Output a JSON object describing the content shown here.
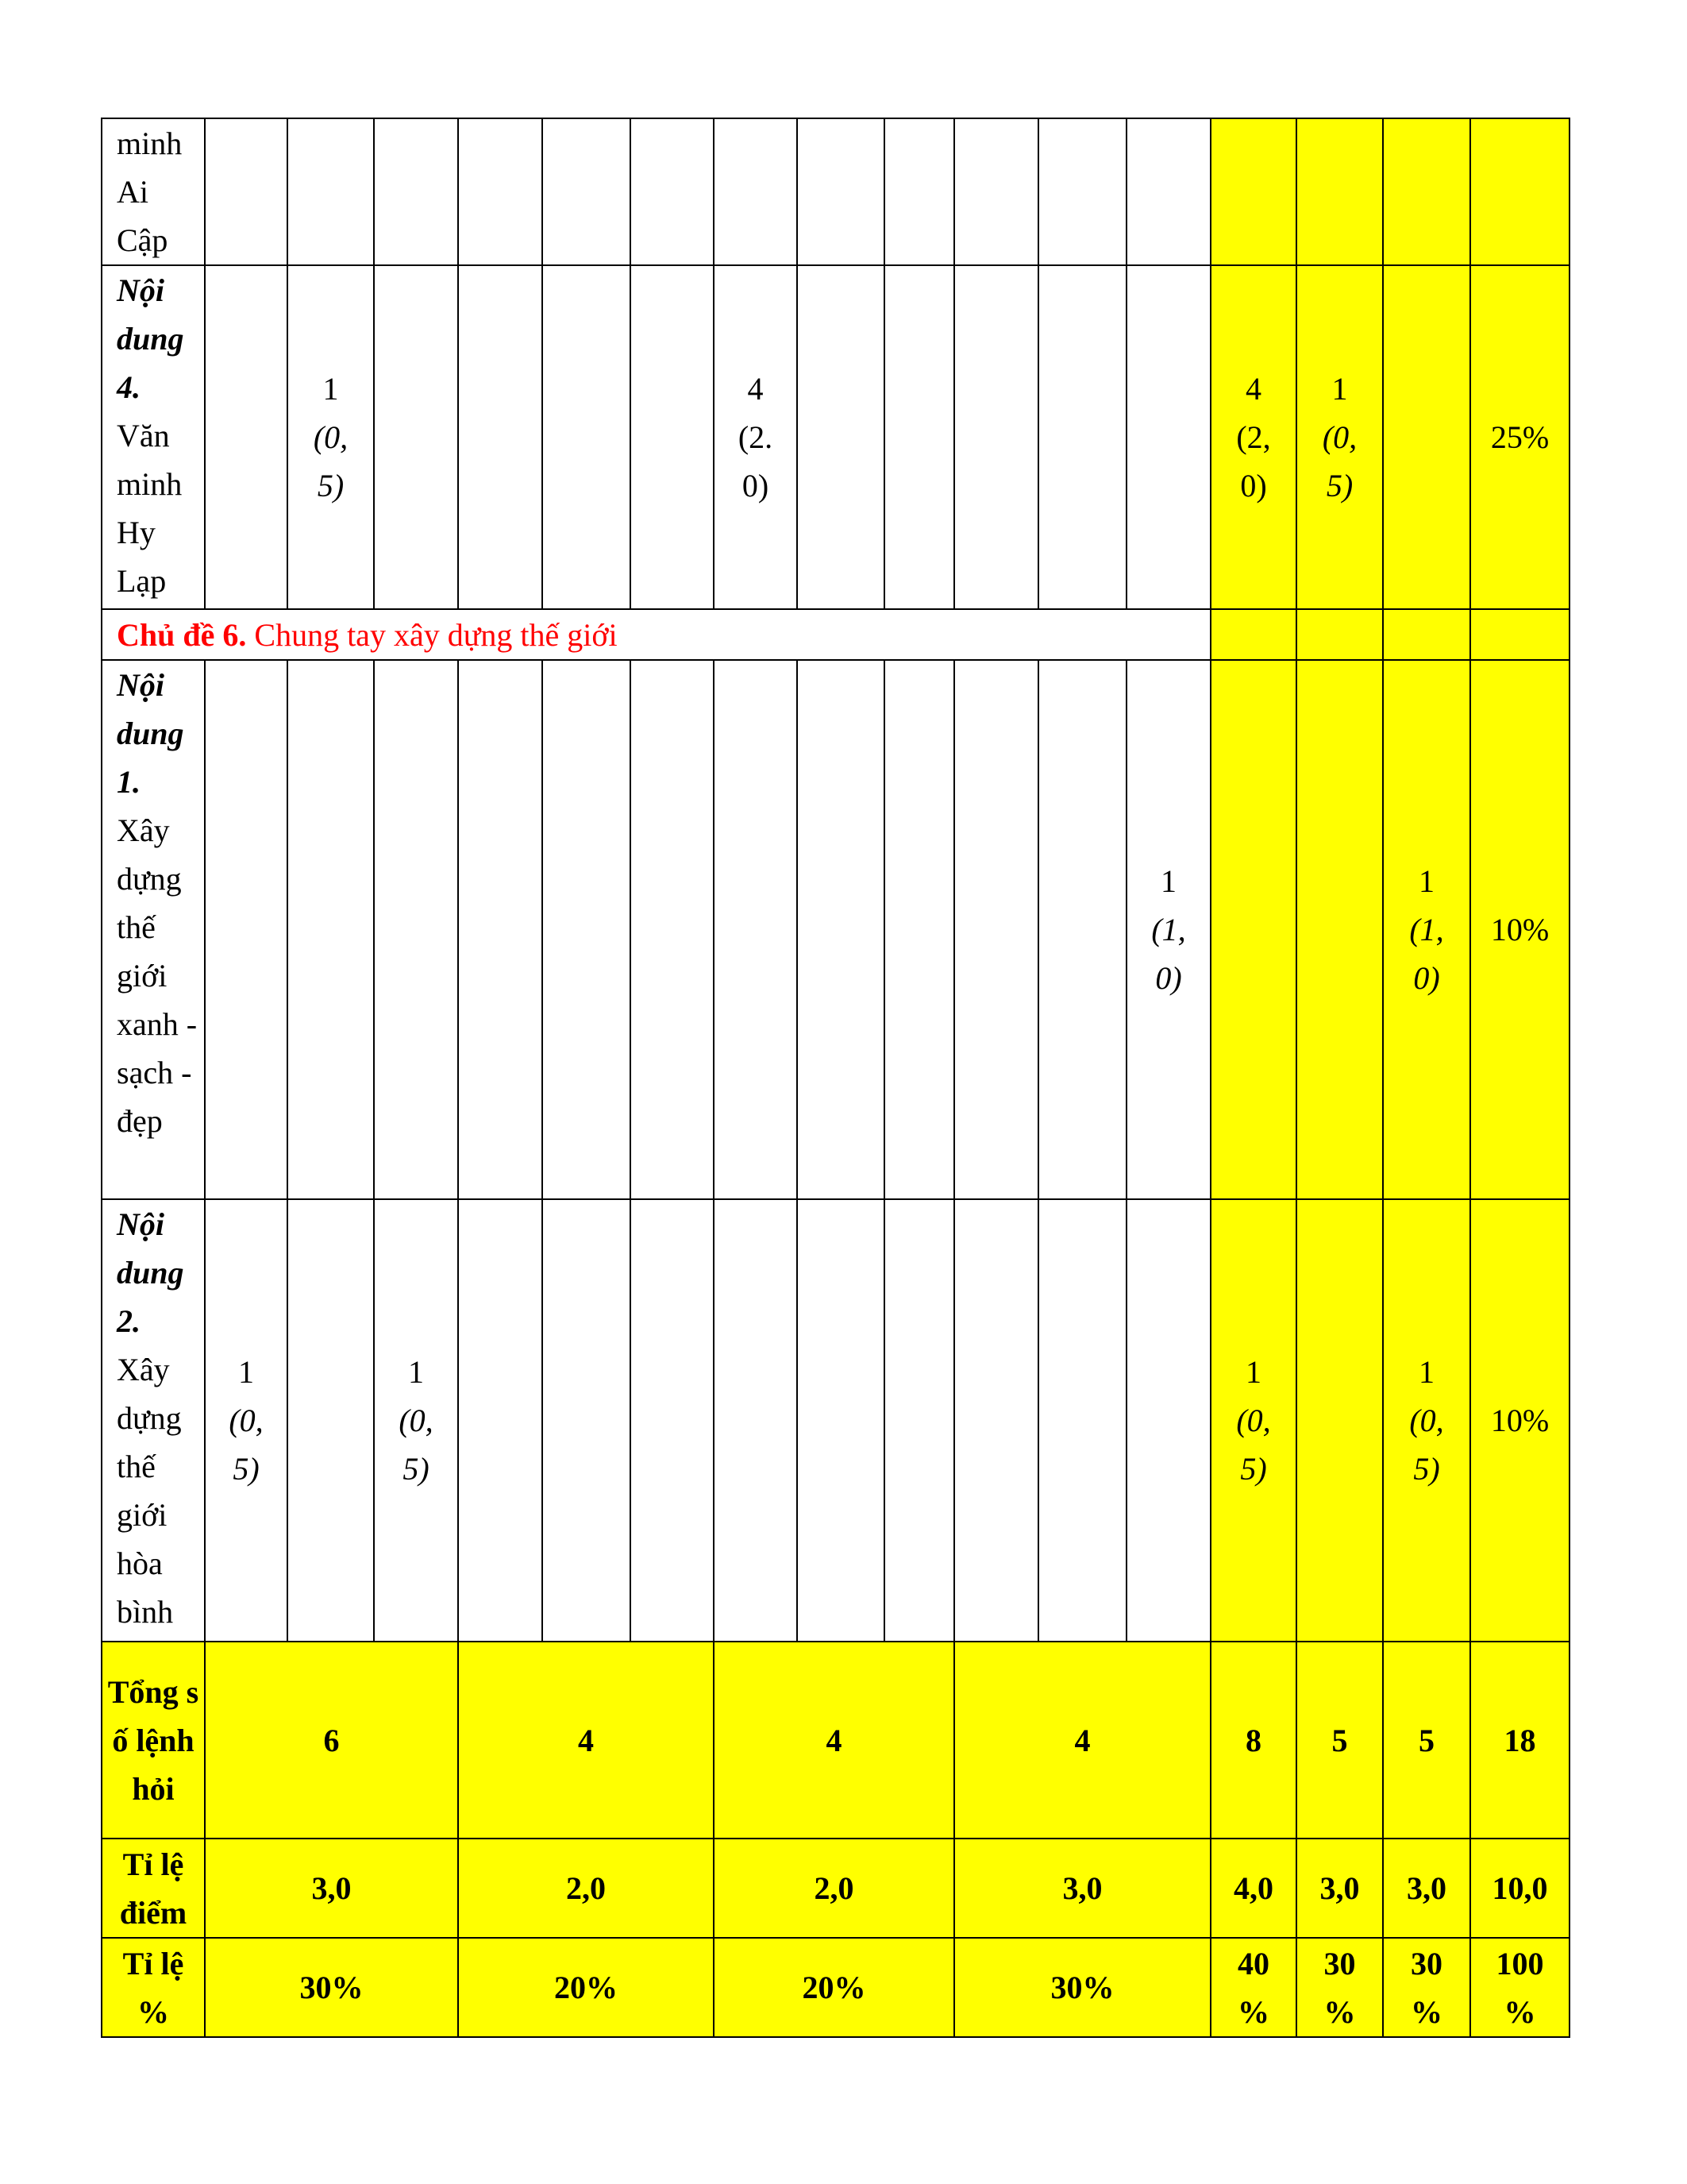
{
  "rows": [
    {
      "label_title": "",
      "label_text": "minh Ai Cập",
      "cells": [
        "",
        "",
        "",
        "",
        "",
        "",
        "",
        "",
        "",
        "",
        "",
        "",
        "",
        "",
        "",
        ""
      ]
    },
    {
      "label_title": "Nội dung 4.",
      "label_text": "Văn minh Hy Lạp",
      "cells": [
        {
          "n": ""
        },
        {
          "n": "1",
          "s": "(0,5)"
        },
        {
          "n": ""
        },
        {
          "n": ""
        },
        {
          "n": ""
        },
        {
          "n": ""
        },
        {
          "n": "4",
          "s": "(2.0)",
          "plain": true
        },
        {
          "n": ""
        },
        {
          "n": ""
        },
        {
          "n": ""
        },
        {
          "n": ""
        },
        {
          "n": ""
        },
        {
          "n": "4",
          "s": "(2,0)",
          "plain": true
        },
        {
          "n": "1",
          "s": "(0,5)"
        },
        {
          "n": ""
        },
        {
          "n": "25%"
        }
      ]
    },
    {
      "topic_bold": "Chủ đề 6.",
      "topic_text": " Chung tay xây dựng thế giới"
    },
    {
      "label_title": "Nội dung 1.",
      "label_text": "Xây dựng thế giới xanh - sạch - đẹp",
      "cells": [
        {
          "n": ""
        },
        {
          "n": ""
        },
        {
          "n": ""
        },
        {
          "n": ""
        },
        {
          "n": ""
        },
        {
          "n": ""
        },
        {
          "n": ""
        },
        {
          "n": ""
        },
        {
          "n": ""
        },
        {
          "n": ""
        },
        {
          "n": ""
        },
        {
          "n": "1",
          "s": "(1,0)"
        },
        {
          "n": ""
        },
        {
          "n": ""
        },
        {
          "n": "1",
          "s": "(1,0)"
        },
        {
          "n": "10%"
        }
      ]
    },
    {
      "label_title": "Nội dung 2.",
      "label_text": "Xây dựng thế giới hòa bình",
      "cells": [
        {
          "n": "1",
          "s": "(0,5)"
        },
        {
          "n": ""
        },
        {
          "n": "1",
          "s": "(0,5)"
        },
        {
          "n": ""
        },
        {
          "n": ""
        },
        {
          "n": ""
        },
        {
          "n": ""
        },
        {
          "n": ""
        },
        {
          "n": ""
        },
        {
          "n": ""
        },
        {
          "n": ""
        },
        {
          "n": ""
        },
        {
          "n": "1",
          "s": "(0,5)"
        },
        {
          "n": ""
        },
        {
          "n": "1",
          "s": "(0,5)"
        },
        {
          "n": "10%"
        }
      ]
    }
  ],
  "totals": [
    {
      "label": "Tổng số lệnh hỏi",
      "values": [
        "6",
        "4",
        "4",
        "4",
        "8",
        "5",
        "5",
        "18"
      ]
    },
    {
      "label": "Tỉ lệ điểm",
      "values": [
        "3,0",
        "2,0",
        "2,0",
        "3,0",
        "4,0",
        "3,0",
        "3,0",
        "10,0"
      ]
    },
    {
      "label": "Tỉ lệ %",
      "values": [
        "30%",
        "20%",
        "20%",
        "30%",
        "40 %",
        "30 %",
        "30 %",
        "100 %"
      ]
    }
  ],
  "colors": {
    "highlight": "#ffff00",
    "topic": "#ff0000"
  }
}
